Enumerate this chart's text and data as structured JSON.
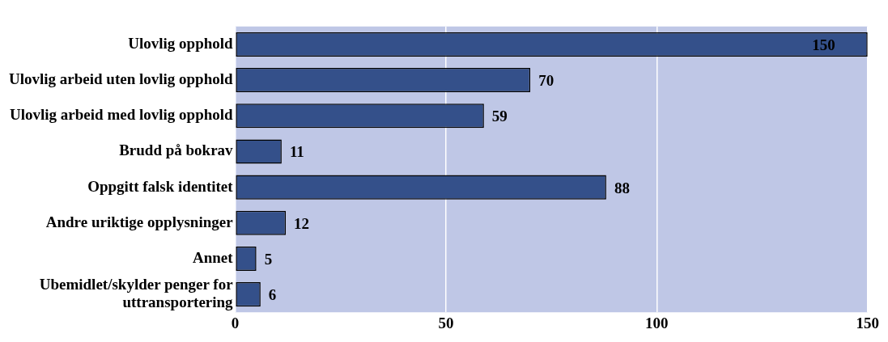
{
  "chart_data": {
    "type": "bar",
    "orientation": "horizontal",
    "categories": [
      "Ulovlig opphold",
      "Ulovlig arbeid uten lovlig opphold",
      "Ulovlig arbeid med lovlig opphold",
      "Brudd på bokrav",
      "Oppgitt falsk identitet",
      "Andre uriktige opplysninger",
      "Annet",
      "Ubemidlet/skylder penger for uttransportering"
    ],
    "values": [
      150,
      70,
      59,
      11,
      88,
      12,
      5,
      6
    ],
    "color": "#34508a",
    "xlim": [
      0,
      150
    ],
    "xticks": [
      0,
      50,
      100,
      150
    ],
    "grid": "x",
    "data_labels": true,
    "legend": false
  }
}
